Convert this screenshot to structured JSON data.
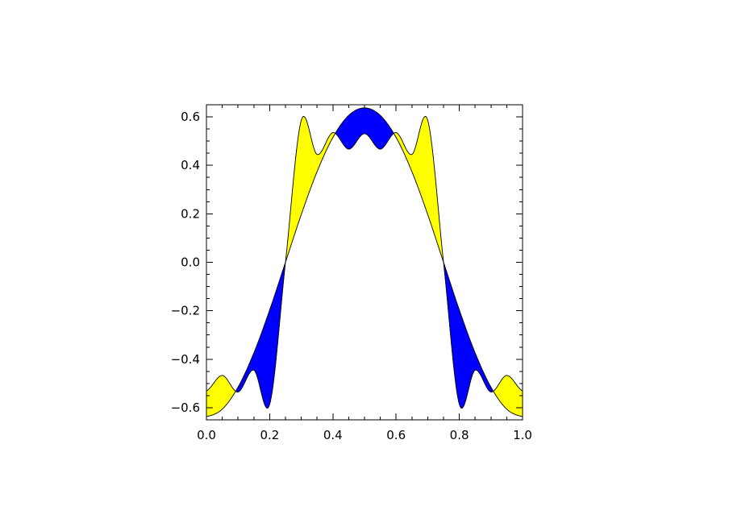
{
  "chart_data": {
    "type": "area",
    "title": "",
    "xlabel": "",
    "ylabel": "",
    "xlim": [
      0.0,
      1.0
    ],
    "ylim": [
      -0.65,
      0.65
    ],
    "grid": false,
    "x_ticks": [
      "0.0",
      "0.2",
      "0.4",
      "0.6",
      "0.8",
      "1.0"
    ],
    "y_ticks": [
      "−0.6",
      "−0.4",
      "−0.2",
      "0.0",
      "0.2",
      "0.4",
      "0.6"
    ],
    "fill_above_color": "#ffff00",
    "fill_below_color": "#0000ff",
    "line_color": "#000000",
    "series": [
      {
        "x": [
          0.0,
          0.05,
          0.1,
          0.15,
          0.2,
          0.25,
          0.3,
          0.35,
          0.4,
          0.45,
          0.5,
          0.55,
          0.6,
          0.65,
          0.7,
          0.75,
          0.8,
          0.85,
          0.9,
          0.95,
          1.0
        ],
        "values": [
          -0.637,
          -0.606,
          -0.515,
          -0.374,
          -0.197,
          0.0,
          0.197,
          0.374,
          0.515,
          0.606,
          0.637,
          0.606,
          0.515,
          0.374,
          0.197,
          0.0,
          -0.197,
          -0.374,
          -0.515,
          -0.606,
          -0.637
        ]
      },
      {
        "x": [
          0.0,
          0.05,
          0.1,
          0.15,
          0.2,
          0.25,
          0.3,
          0.35,
          0.4,
          0.45,
          0.5,
          0.55,
          0.6,
          0.65,
          0.7,
          0.75,
          0.8,
          0.85,
          0.9,
          0.95,
          1.0
        ],
        "values": [
          -0.531,
          -0.467,
          -0.535,
          -0.445,
          -0.586,
          0.0,
          0.586,
          0.445,
          0.535,
          0.467,
          0.531,
          0.467,
          0.535,
          0.445,
          0.586,
          0.0,
          -0.586,
          -0.445,
          -0.535,
          -0.467,
          -0.531
        ]
      }
    ]
  }
}
